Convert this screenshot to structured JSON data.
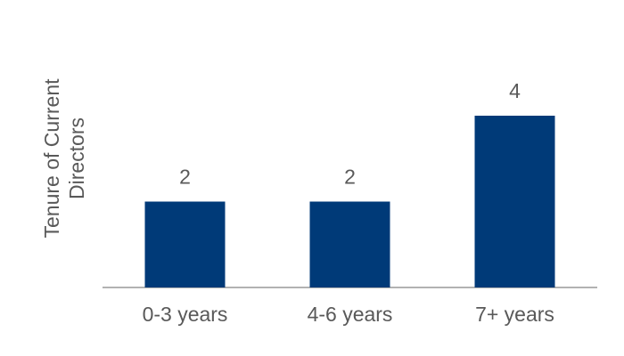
{
  "chart_data": {
    "type": "bar",
    "ylabel": [
      "Tenure of Current",
      "Directors"
    ],
    "categories": [
      "0-3 years",
      "4-6 years",
      "7+ years"
    ],
    "values": [
      2,
      2,
      4
    ],
    "color": "#003a78",
    "ylim": [
      0,
      4
    ]
  }
}
